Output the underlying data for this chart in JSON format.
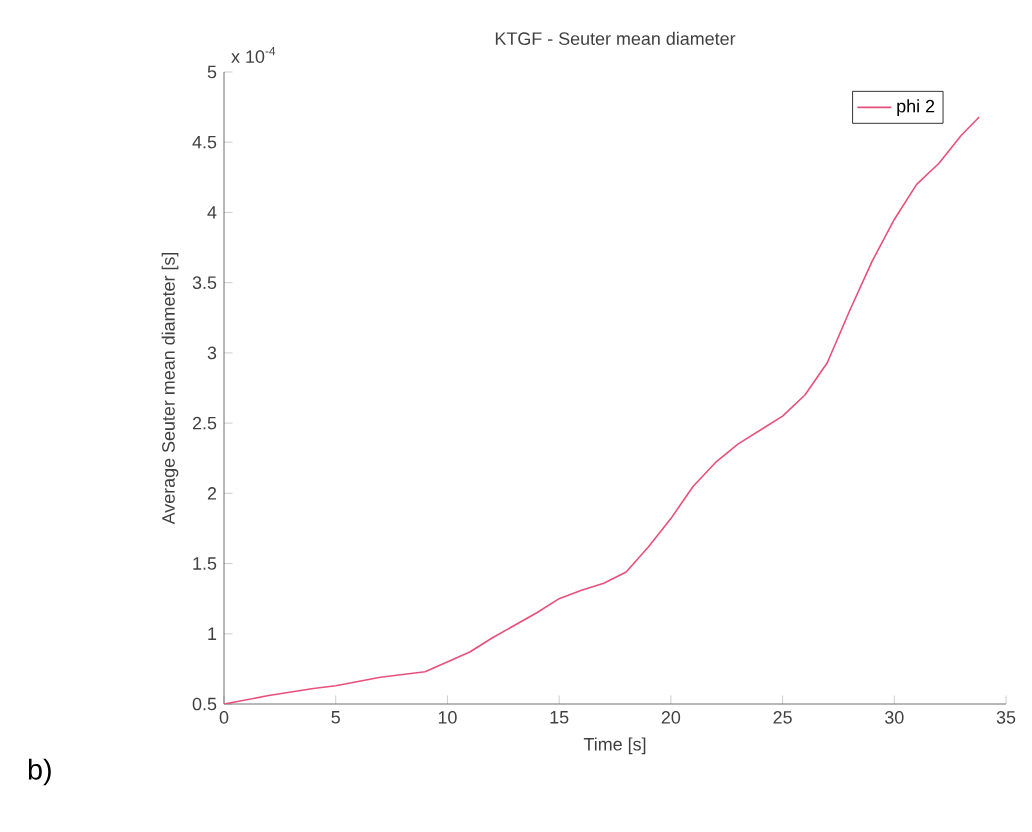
{
  "chart_data": {
    "type": "line",
    "title": "KTGF - Seuter mean diameter",
    "xlabel": "Time [s]",
    "ylabel": "Average Seuter mean diameter [s]",
    "annotations": [
      "x 10$^{-4}$",
      "b)"
    ],
    "x": [
      0,
      2,
      4,
      5,
      7,
      9,
      10,
      11,
      12,
      13,
      14,
      15,
      16,
      17,
      18,
      19,
      20,
      21,
      22,
      23,
      24,
      25,
      26,
      27,
      28,
      29,
      30,
      31,
      32,
      33,
      33.8
    ],
    "series": [
      {
        "name": "phi 2",
        "color": "#e8507a",
        "values": [
          0.5,
          0.56,
          0.61,
          0.63,
          0.69,
          0.73,
          0.8,
          0.87,
          0.97,
          1.06,
          1.15,
          1.25,
          1.31,
          1.36,
          1.44,
          1.62,
          1.82,
          2.05,
          2.22,
          2.35,
          2.45,
          2.55,
          2.7,
          2.93,
          3.3,
          3.65,
          3.95,
          4.2,
          4.35,
          4.55,
          4.68
        ]
      }
    ],
    "xlim": [
      0,
      35
    ],
    "ylim": [
      0.5,
      5
    ],
    "xticks": [
      0,
      5,
      10,
      15,
      20,
      25,
      30,
      35
    ],
    "yticks": [
      0.5,
      1,
      1.5,
      2,
      2.5,
      3,
      3.5,
      4,
      4.5,
      5
    ],
    "grid": false,
    "legend": "top right",
    "marker": "none",
    "line_style": "solid"
  }
}
